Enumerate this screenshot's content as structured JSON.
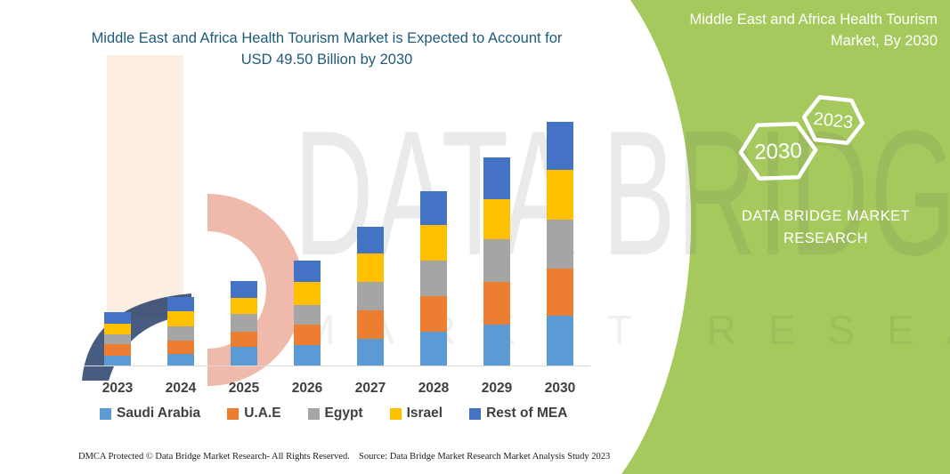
{
  "title": "Middle East and Africa Health Tourism Market is Expected to Account for USD 49.50 Billion by 2030",
  "side_panel": {
    "title": "Middle East and Africa Health Tourism Market, By 2030",
    "hexagon_back_label": "2030",
    "hexagon_front_label": "2023",
    "brand_line1": "DATA BRIDGE MARKET",
    "brand_line2": "RESEARCH",
    "background_color": "#A5C95C"
  },
  "watermark": {
    "line1": "DATA BRIDGE",
    "line2": "MARKET RESEARCH"
  },
  "chart_data": {
    "type": "bar",
    "stacked": true,
    "title": "Middle East and Africa Health Tourism Market is Expected to Account for USD 49.50 Billion by 2030",
    "unit": "USD Billion",
    "categories": [
      "2023",
      "2024",
      "2025",
      "2026",
      "2027",
      "2028",
      "2029",
      "2030"
    ],
    "series": [
      {
        "name": "Saudi Arabia",
        "color": "#5B9BD5",
        "values": [
          2.0,
          2.3,
          3.8,
          4.2,
          5.4,
          6.9,
          8.3,
          10.1
        ]
      },
      {
        "name": "U.A.E",
        "color": "#ED7D31",
        "values": [
          2.3,
          2.7,
          3.1,
          4.2,
          5.8,
          7.2,
          8.7,
          9.6
        ]
      },
      {
        "name": "Egypt",
        "color": "#A5A5A5",
        "values": [
          2.0,
          2.9,
          3.6,
          4.0,
          5.8,
          7.2,
          8.7,
          9.9
        ]
      },
      {
        "name": "Israel",
        "color": "#FFC000",
        "values": [
          2.2,
          3.1,
          3.3,
          4.7,
          5.8,
          7.2,
          8.1,
          10.1
        ]
      },
      {
        "name": "Rest of MEA",
        "color": "#4472C4",
        "values": [
          2.3,
          2.9,
          3.4,
          4.2,
          5.4,
          6.9,
          8.5,
          9.8
        ]
      }
    ],
    "totals": [
      10.8,
      13.9,
      17.2,
      21.3,
      28.2,
      35.4,
      42.3,
      49.5
    ],
    "ylim": [
      0,
      50
    ],
    "grid": false,
    "y_axis_visible": false,
    "legend_position": "bottom"
  },
  "footer": {
    "left": "DMCA Protected © Data Bridge Market Research-  All Rights Reserved.",
    "right": "Source: Data Bridge Market Research  Market Analysis Study 2023"
  },
  "colors": {
    "title_text": "#1E5B7A",
    "panel_green": "#A5C95C",
    "axis_label": "#3F3F3F",
    "axis_line": "#D9D9D9"
  }
}
